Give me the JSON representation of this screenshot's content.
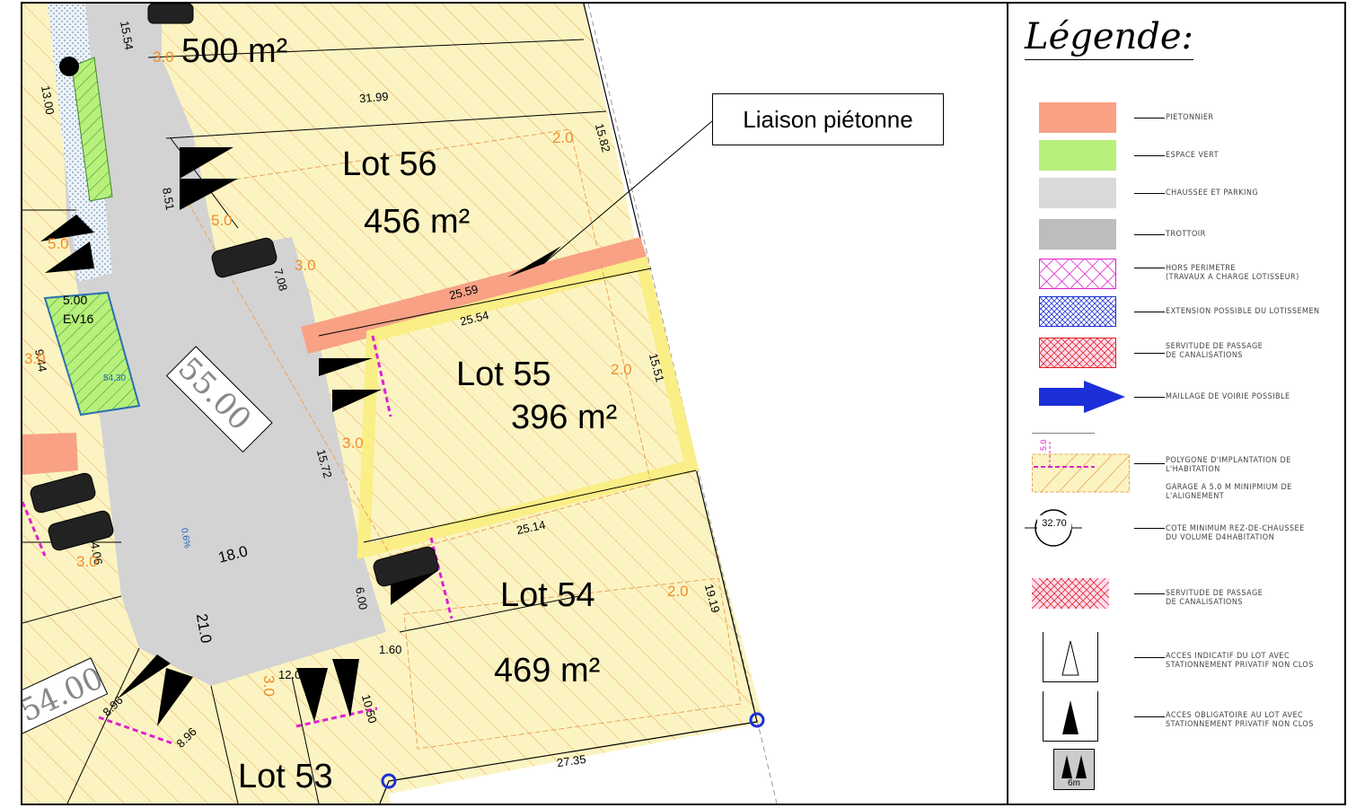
{
  "callout": {
    "label": "Liaison piétonne"
  },
  "lots": [
    {
      "name": "Lot 56",
      "area": "456 m²"
    },
    {
      "name": "Lot 55",
      "area": "396 m²"
    },
    {
      "name": "Lot 54",
      "area": "469 m²"
    },
    {
      "name": "Lot 53"
    }
  ],
  "top_area": "500 m²",
  "road_elevations": [
    "55.00",
    "54.00"
  ],
  "green_space": {
    "id": "EV16",
    "width": "5.00",
    "level": "54.30"
  },
  "dimensions": {
    "d1": "15.54",
    "d2": "31.99",
    "d3": "15.82",
    "d4": "8.51",
    "d5": "7.08",
    "d6": "25.59",
    "d7": "25.54",
    "d8": "15.51",
    "d9": "15.72",
    "d10": "25.14",
    "d11": "18.0",
    "d12": "21.0",
    "d13": "6.00",
    "d14": "19.19",
    "d15": "1.60",
    "d16": "10.50",
    "d17": "27.35",
    "d18": "8.96",
    "d19": "12.00",
    "d20": "9.44",
    "d21": "4.06",
    "d22": "8.96",
    "d23": "13.00",
    "d24": "1.50"
  },
  "setbacks": {
    "s_3": "3.0",
    "s_2": "2.0",
    "s_5": "5.0"
  },
  "slope": "0.6%",
  "legend": {
    "title": "Légende:",
    "items": [
      {
        "label": "PIETONNIER"
      },
      {
        "label": "ESPACE VERT"
      },
      {
        "label": "CHAUSSEE ET PARKING"
      },
      {
        "label": "TROTTOIR"
      },
      {
        "label": "HORS PERIMETRE\n(TRAVAUX A CHARGE LOTISSEUR)"
      },
      {
        "label": "EXTENSION POSSIBLE DU LOTISSEMEN"
      },
      {
        "label": "SERVITUDE DE PASSAGE\nDE CANALISATIONS"
      },
      {
        "label": "MAILLAGE DE VOIRIE POSSIBLE"
      },
      {
        "label": "POLYGONE D'IMPLANTATION DE\nL'HABITATION",
        "sub": "GARAGE A 5.0 M MINIPMIUM DE\nL'ALIGNEMENT",
        "marker": "5.0"
      },
      {
        "label": "COTE MINIMUM REZ-DE-CHAUSSEE\nDU VOLUME D4HABITATION",
        "marker": "32.70"
      },
      {
        "label": "SERVITUDE DE PASSAGE\nDE CANALISATIONS"
      },
      {
        "label": "ACCES INDICATIF DU LOT AVEC\nSTATIONNEMENT PRIVATIF NON CLOS"
      },
      {
        "label": "ACCES OBLIGATOIRE AU LOT AVEC\nSTATIONNEMENT PRIVATIF NON CLOS"
      },
      {
        "label": "6m"
      }
    ]
  },
  "colors": {
    "lot_fill": "#fbf4c2",
    "hatch": "#e9a35a",
    "pedestrian": "#f8a185",
    "green": "#b7f07b",
    "road": "#d3d3d3",
    "sidewalk": "#bdbdbd",
    "implant_yellow": "#faee86",
    "orange_text": "#f08d2c"
  }
}
